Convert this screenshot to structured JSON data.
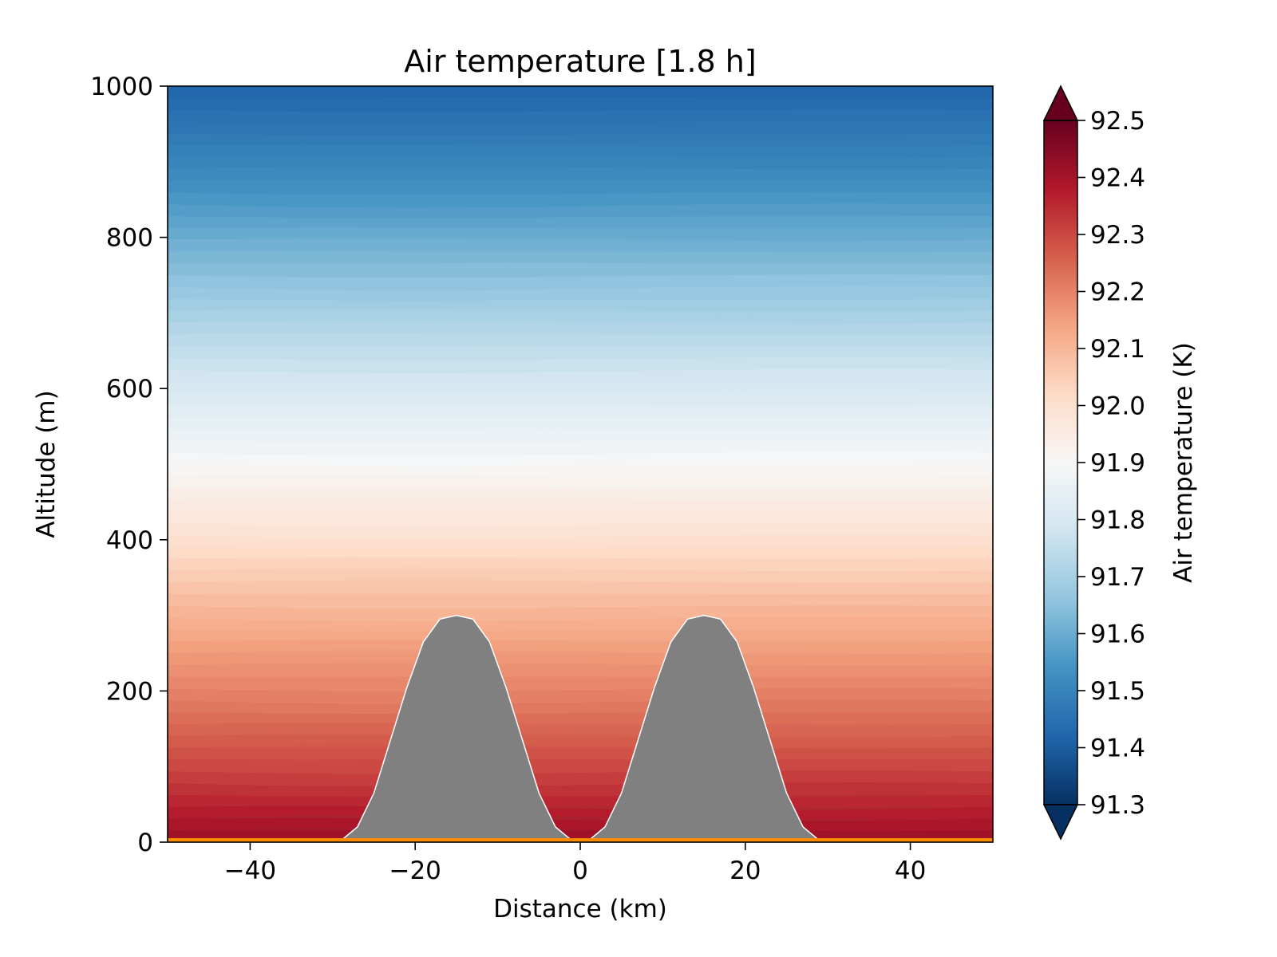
{
  "chart_data": {
    "type": "heatmap",
    "title": "Air temperature [1.8 h]",
    "xlabel": "Distance (km)",
    "ylabel": "Altitude (m)",
    "xlim": [
      -50,
      50
    ],
    "ylim": [
      0,
      1000
    ],
    "x_ticks": [
      -40,
      -20,
      0,
      20,
      40
    ],
    "x_tick_labels": [
      "−40",
      "−20",
      "0",
      "20",
      "40"
    ],
    "y_ticks": [
      0,
      200,
      400,
      600,
      800,
      1000
    ],
    "y_tick_labels": [
      "0",
      "200",
      "400",
      "600",
      "800",
      "1000"
    ],
    "colorbar": {
      "label": "Air temperature (K)",
      "range": [
        91.3,
        92.5
      ],
      "ticks": [
        91.3,
        91.4,
        91.5,
        91.6,
        91.7,
        91.8,
        91.9,
        92.0,
        92.1,
        92.2,
        92.3,
        92.4,
        92.5
      ],
      "tick_labels": [
        "91.3",
        "91.4",
        "91.5",
        "91.6",
        "91.7",
        "91.8",
        "91.9",
        "92.0",
        "92.1",
        "92.2",
        "92.3",
        "92.4",
        "92.5"
      ],
      "extend": "both",
      "colormap": "RdBu_r",
      "colors": [
        "#053061",
        "#2166ac",
        "#4393c3",
        "#92c5de",
        "#d1e5f0",
        "#f7f7f7",
        "#fddbc7",
        "#f4a582",
        "#d6604d",
        "#b2182b",
        "#67001f"
      ]
    },
    "temperature_profile": {
      "altitude": [
        0,
        100,
        200,
        300,
        400,
        500,
        600,
        700,
        800,
        900,
        1000
      ],
      "temperature": [
        92.42,
        92.3,
        92.2,
        92.11,
        92.0,
        91.9,
        91.8,
        91.7,
        91.6,
        91.5,
        91.42
      ]
    },
    "terrain": {
      "x": [
        -50,
        -29,
        -27,
        -25,
        -23,
        -21,
        -19,
        -17,
        -15,
        -13,
        -11,
        -9,
        -7,
        -5,
        -3,
        -1,
        1,
        3,
        5,
        7,
        9,
        11,
        13,
        15,
        17,
        19,
        21,
        23,
        25,
        27,
        29,
        50
      ],
      "y": [
        0,
        2,
        20,
        65,
        135,
        205,
        265,
        295,
        300,
        295,
        265,
        205,
        135,
        65,
        20,
        2,
        2,
        20,
        65,
        135,
        205,
        265,
        295,
        300,
        295,
        265,
        205,
        135,
        65,
        20,
        2,
        0
      ],
      "fill_color": "#808080",
      "edge_color": "#ffffff"
    },
    "ground_line_color": "#ff8c00"
  }
}
